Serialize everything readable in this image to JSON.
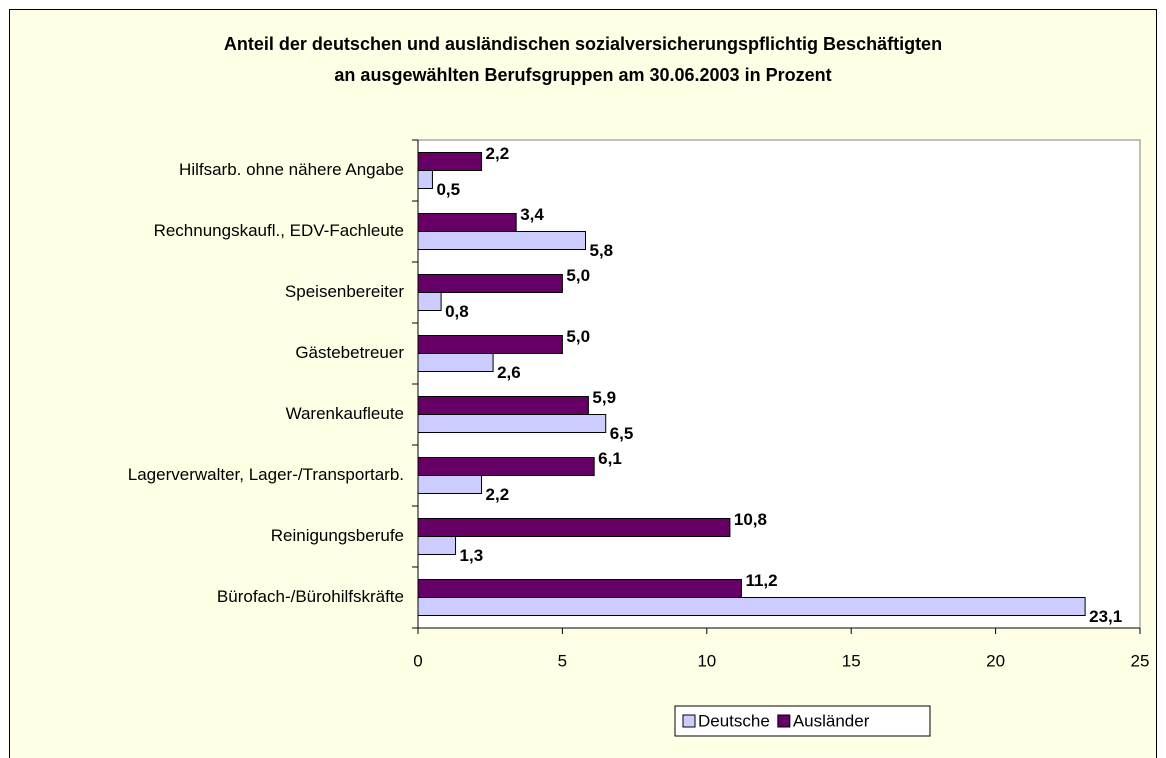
{
  "chart_data": {
    "type": "hbar",
    "title": [
      "Anteil der deutschen und ausländischen sozialversicherungspflichtig Beschäftigten",
      "an ausgewählten Berufsgruppen am 30.06.2003 in Prozent"
    ],
    "categories": [
      "Hilfsarb. ohne nähere Angabe",
      "Rechnungskaufl., EDV-Fachleute",
      "Speisenbereiter",
      "Gästebetreuer",
      "Warenkaufleute",
      "Lagerverwalter, Lager-/Transportarb.",
      "Reinigungsberufe",
      "Bürofach-/Bürohilfskräfte"
    ],
    "series": [
      {
        "name": "Deutsche",
        "color": "#ccccff",
        "values": [
          0.5,
          5.8,
          0.8,
          2.6,
          6.5,
          2.2,
          1.3,
          23.1
        ],
        "value_labels": [
          "0,5",
          "5,8",
          "0,8",
          "2,6",
          "6,5",
          "2,2",
          "1,3",
          "23,1"
        ]
      },
      {
        "name": "Ausländer",
        "color": "#660066",
        "values": [
          2.2,
          3.4,
          5.0,
          5.0,
          5.9,
          6.1,
          10.8,
          11.2
        ],
        "value_labels": [
          "2,2",
          "3,4",
          "5,0",
          "5,0",
          "5,9",
          "6,1",
          "10,8",
          "11,2"
        ]
      }
    ],
    "xlim": [
      0,
      25
    ],
    "xticks": [
      0,
      5,
      10,
      15,
      20,
      25
    ],
    "legend": "bottom"
  }
}
